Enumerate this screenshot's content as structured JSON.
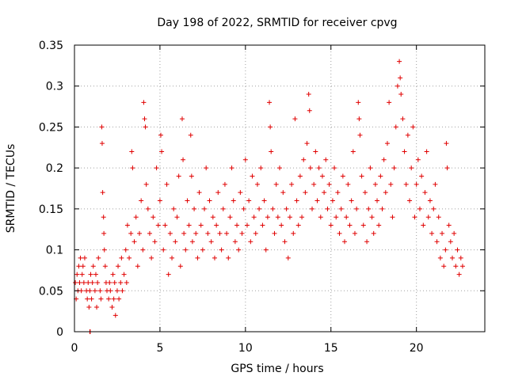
{
  "chart_data": {
    "type": "scatter",
    "title": "Day 198 of 2022, SRMTID for receiver cpvg",
    "xlabel": "GPS time / hours",
    "ylabel": "SRMTID / TECUs",
    "xlim": [
      0,
      24
    ],
    "ylim": [
      0,
      0.35
    ],
    "xticks": [
      0,
      5,
      10,
      15,
      20
    ],
    "xtick_labels": [
      "0",
      "5",
      "10",
      "15",
      "20"
    ],
    "yticks": [
      0,
      0.05,
      0.1,
      0.15,
      0.2,
      0.25,
      0.3,
      0.35
    ],
    "ytick_labels": [
      "0",
      "0.05",
      "0.1",
      "0.15",
      "0.2",
      "0.25",
      "0.3",
      "0.35"
    ],
    "grid": true,
    "marker": "+",
    "color": "#e00000",
    "series": [
      {
        "name": "SRMTID",
        "points": [
          [
            0.05,
            0.06
          ],
          [
            0.1,
            0.04
          ],
          [
            0.15,
            0.07
          ],
          [
            0.2,
            0.05
          ],
          [
            0.25,
            0.08
          ],
          [
            0.3,
            0.06
          ],
          [
            0.35,
            0.09
          ],
          [
            0.4,
            0.05
          ],
          [
            0.45,
            0.07
          ],
          [
            0.5,
            0.08
          ],
          [
            0.55,
            0.06
          ],
          [
            0.6,
            0.09
          ],
          [
            0.7,
            0.05
          ],
          [
            0.75,
            0.04
          ],
          [
            0.8,
            0.06
          ],
          [
            0.85,
            0.03
          ],
          [
            0.9,
            0.05
          ],
          [
            0.95,
            0.07
          ],
          [
            1.0,
            0.04
          ],
          [
            1.05,
            0.06
          ],
          [
            1.1,
            0.08
          ],
          [
            1.2,
            0.05
          ],
          [
            1.25,
            0.07
          ],
          [
            1.3,
            0.03
          ],
          [
            1.35,
            0.06
          ],
          [
            1.4,
            0.09
          ],
          [
            1.5,
            0.05
          ],
          [
            1.55,
            0.04
          ],
          [
            1.6,
            0.25
          ],
          [
            1.62,
            0.23
          ],
          [
            1.65,
            0.17
          ],
          [
            1.7,
            0.14
          ],
          [
            1.72,
            0.12
          ],
          [
            1.75,
            0.1
          ],
          [
            1.8,
            0.08
          ],
          [
            1.85,
            0.06
          ],
          [
            1.9,
            0.05
          ],
          [
            2.0,
            0.04
          ],
          [
            2.05,
            0.06
          ],
          [
            2.1,
            0.05
          ],
          [
            2.2,
            0.03
          ],
          [
            2.25,
            0.07
          ],
          [
            2.3,
            0.04
          ],
          [
            2.35,
            0.06
          ],
          [
            2.4,
            0.02
          ],
          [
            2.5,
            0.05
          ],
          [
            2.55,
            0.08
          ],
          [
            2.6,
            0.04
          ],
          [
            2.7,
            0.06
          ],
          [
            2.75,
            0.09
          ],
          [
            2.8,
            0.05
          ],
          [
            2.9,
            0.07
          ],
          [
            3.0,
            0.1
          ],
          [
            3.05,
            0.06
          ],
          [
            3.1,
            0.13
          ],
          [
            3.2,
            0.09
          ],
          [
            3.3,
            0.12
          ],
          [
            3.35,
            0.22
          ],
          [
            3.4,
            0.2
          ],
          [
            3.5,
            0.11
          ],
          [
            3.6,
            0.14
          ],
          [
            3.7,
            0.08
          ],
          [
            3.8,
            0.12
          ],
          [
            3.9,
            0.16
          ],
          [
            4.0,
            0.1
          ],
          [
            4.05,
            0.28
          ],
          [
            4.1,
            0.26
          ],
          [
            4.15,
            0.25
          ],
          [
            4.2,
            0.18
          ],
          [
            4.3,
            0.15
          ],
          [
            4.4,
            0.12
          ],
          [
            4.5,
            0.09
          ],
          [
            4.6,
            0.14
          ],
          [
            4.7,
            0.11
          ],
          [
            4.8,
            0.2
          ],
          [
            4.9,
            0.13
          ],
          [
            5.0,
            0.16
          ],
          [
            5.05,
            0.24
          ],
          [
            5.1,
            0.22
          ],
          [
            5.2,
            0.1
          ],
          [
            5.3,
            0.13
          ],
          [
            5.4,
            0.18
          ],
          [
            5.5,
            0.07
          ],
          [
            5.6,
            0.12
          ],
          [
            5.7,
            0.09
          ],
          [
            5.8,
            0.15
          ],
          [
            5.9,
            0.11
          ],
          [
            6.0,
            0.14
          ],
          [
            6.1,
            0.19
          ],
          [
            6.2,
            0.08
          ],
          [
            6.3,
            0.26
          ],
          [
            6.35,
            0.21
          ],
          [
            6.4,
            0.12
          ],
          [
            6.5,
            0.1
          ],
          [
            6.6,
            0.16
          ],
          [
            6.7,
            0.13
          ],
          [
            6.8,
            0.24
          ],
          [
            6.85,
            0.19
          ],
          [
            6.9,
            0.11
          ],
          [
            7.0,
            0.15
          ],
          [
            7.1,
            0.12
          ],
          [
            7.2,
            0.09
          ],
          [
            7.3,
            0.17
          ],
          [
            7.4,
            0.13
          ],
          [
            7.5,
            0.1
          ],
          [
            7.6,
            0.15
          ],
          [
            7.7,
            0.2
          ],
          [
            7.8,
            0.12
          ],
          [
            7.9,
            0.16
          ],
          [
            8.0,
            0.11
          ],
          [
            8.1,
            0.14
          ],
          [
            8.2,
            0.09
          ],
          [
            8.3,
            0.13
          ],
          [
            8.4,
            0.17
          ],
          [
            8.5,
            0.12
          ],
          [
            8.6,
            0.1
          ],
          [
            8.7,
            0.15
          ],
          [
            8.8,
            0.18
          ],
          [
            8.9,
            0.12
          ],
          [
            9.0,
            0.09
          ],
          [
            9.1,
            0.14
          ],
          [
            9.2,
            0.2
          ],
          [
            9.3,
            0.16
          ],
          [
            9.4,
            0.11
          ],
          [
            9.5,
            0.13
          ],
          [
            9.6,
            0.1
          ],
          [
            9.7,
            0.17
          ],
          [
            9.8,
            0.12
          ],
          [
            9.9,
            0.15
          ],
          [
            10.0,
            0.21
          ],
          [
            10.1,
            0.13
          ],
          [
            10.2,
            0.16
          ],
          [
            10.3,
            0.11
          ],
          [
            10.4,
            0.19
          ],
          [
            10.5,
            0.14
          ],
          [
            10.6,
            0.12
          ],
          [
            10.7,
            0.18
          ],
          [
            10.8,
            0.15
          ],
          [
            10.9,
            0.2
          ],
          [
            11.0,
            0.13
          ],
          [
            11.1,
            0.16
          ],
          [
            11.2,
            0.1
          ],
          [
            11.3,
            0.14
          ],
          [
            11.4,
            0.28
          ],
          [
            11.45,
            0.25
          ],
          [
            11.5,
            0.22
          ],
          [
            11.6,
            0.15
          ],
          [
            11.7,
            0.12
          ],
          [
            11.8,
            0.18
          ],
          [
            11.9,
            0.14
          ],
          [
            12.0,
            0.2
          ],
          [
            12.1,
            0.13
          ],
          [
            12.2,
            0.17
          ],
          [
            12.3,
            0.11
          ],
          [
            12.4,
            0.15
          ],
          [
            12.5,
            0.09
          ],
          [
            12.6,
            0.14
          ],
          [
            12.7,
            0.18
          ],
          [
            12.8,
            0.12
          ],
          [
            12.9,
            0.26
          ],
          [
            13.0,
            0.16
          ],
          [
            13.1,
            0.13
          ],
          [
            13.2,
            0.19
          ],
          [
            13.3,
            0.14
          ],
          [
            13.4,
            0.21
          ],
          [
            13.5,
            0.17
          ],
          [
            13.6,
            0.23
          ],
          [
            13.7,
            0.29
          ],
          [
            13.75,
            0.27
          ],
          [
            13.8,
            0.2
          ],
          [
            13.9,
            0.15
          ],
          [
            14.0,
            0.18
          ],
          [
            14.1,
            0.22
          ],
          [
            14.2,
            0.16
          ],
          [
            14.3,
            0.2
          ],
          [
            14.4,
            0.14
          ],
          [
            14.5,
            0.19
          ],
          [
            14.6,
            0.17
          ],
          [
            14.7,
            0.21
          ],
          [
            14.8,
            0.15
          ],
          [
            14.9,
            0.18
          ],
          [
            15.0,
            0.13
          ],
          [
            15.1,
            0.16
          ],
          [
            15.2,
            0.2
          ],
          [
            15.3,
            0.14
          ],
          [
            15.4,
            0.17
          ],
          [
            15.5,
            0.12
          ],
          [
            15.6,
            0.15
          ],
          [
            15.7,
            0.19
          ],
          [
            15.8,
            0.11
          ],
          [
            15.9,
            0.14
          ],
          [
            16.0,
            0.18
          ],
          [
            16.1,
            0.13
          ],
          [
            16.2,
            0.16
          ],
          [
            16.3,
            0.22
          ],
          [
            16.4,
            0.12
          ],
          [
            16.5,
            0.15
          ],
          [
            16.6,
            0.28
          ],
          [
            16.65,
            0.26
          ],
          [
            16.7,
            0.24
          ],
          [
            16.8,
            0.19
          ],
          [
            16.9,
            0.13
          ],
          [
            17.0,
            0.17
          ],
          [
            17.1,
            0.11
          ],
          [
            17.2,
            0.15
          ],
          [
            17.3,
            0.2
          ],
          [
            17.4,
            0.14
          ],
          [
            17.5,
            0.12
          ],
          [
            17.6,
            0.18
          ],
          [
            17.7,
            0.16
          ],
          [
            17.8,
            0.13
          ],
          [
            17.9,
            0.19
          ],
          [
            18.0,
            0.15
          ],
          [
            18.1,
            0.21
          ],
          [
            18.2,
            0.17
          ],
          [
            18.3,
            0.23
          ],
          [
            18.4,
            0.28
          ],
          [
            18.5,
            0.18
          ],
          [
            18.6,
            0.14
          ],
          [
            18.7,
            0.2
          ],
          [
            18.8,
            0.25
          ],
          [
            18.9,
            0.3
          ],
          [
            19.0,
            0.33
          ],
          [
            19.05,
            0.31
          ],
          [
            19.1,
            0.29
          ],
          [
            19.2,
            0.26
          ],
          [
            19.3,
            0.22
          ],
          [
            19.4,
            0.18
          ],
          [
            19.5,
            0.24
          ],
          [
            19.6,
            0.16
          ],
          [
            19.7,
            0.2
          ],
          [
            19.8,
            0.25
          ],
          [
            19.9,
            0.14
          ],
          [
            20.0,
            0.18
          ],
          [
            20.1,
            0.21
          ],
          [
            20.2,
            0.15
          ],
          [
            20.3,
            0.19
          ],
          [
            20.4,
            0.13
          ],
          [
            20.5,
            0.17
          ],
          [
            20.6,
            0.22
          ],
          [
            20.7,
            0.14
          ],
          [
            20.8,
            0.16
          ],
          [
            20.9,
            0.12
          ],
          [
            21.0,
            0.15
          ],
          [
            21.1,
            0.18
          ],
          [
            21.2,
            0.11
          ],
          [
            21.3,
            0.14
          ],
          [
            21.4,
            0.09
          ],
          [
            21.5,
            0.12
          ],
          [
            21.6,
            0.08
          ],
          [
            21.7,
            0.1
          ],
          [
            21.75,
            0.23
          ],
          [
            21.8,
            0.2
          ],
          [
            21.9,
            0.13
          ],
          [
            22.0,
            0.11
          ],
          [
            22.1,
            0.09
          ],
          [
            22.2,
            0.12
          ],
          [
            22.3,
            0.08
          ],
          [
            22.4,
            0.1
          ],
          [
            22.5,
            0.07
          ],
          [
            22.6,
            0.09
          ],
          [
            22.7,
            0.08
          ],
          [
            0.9,
            0.0
          ],
          [
            0.92,
            0.0
          ]
        ]
      }
    ]
  }
}
